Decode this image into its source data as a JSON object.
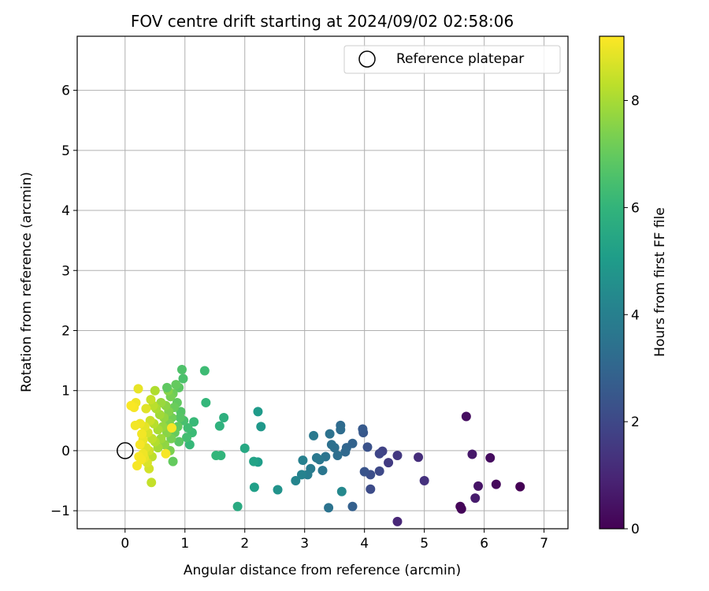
{
  "chart_data": {
    "type": "scatter",
    "title": "FOV centre drift starting at 2024/09/02 02:58:06",
    "xlabel": "Angular distance from reference (arcmin)",
    "ylabel": "Rotation from reference (arcmin)",
    "xlim": [
      -0.8,
      7.4
    ],
    "ylim": [
      -1.3,
      6.9
    ],
    "xticks": [
      0,
      1,
      2,
      3,
      4,
      5,
      6,
      7
    ],
    "yticks": [
      -1,
      0,
      1,
      2,
      3,
      4,
      5,
      6
    ],
    "xtick_labels": [
      "0",
      "1",
      "2",
      "3",
      "4",
      "5",
      "6",
      "7"
    ],
    "ytick_labels": [
      "−1",
      "0",
      "1",
      "2",
      "3",
      "4",
      "5",
      "6"
    ],
    "grid": true,
    "colormap": "viridis",
    "colorbar": {
      "label": "Hours from first FF file",
      "range": [
        0,
        9.2
      ],
      "ticks": [
        0,
        2,
        4,
        6,
        8
      ],
      "tick_labels": [
        "0",
        "2",
        "4",
        "6",
        "8"
      ]
    },
    "legend": {
      "placement": "top-right",
      "entries": [
        {
          "label": "Reference platepar",
          "marker": "open-circle",
          "color": "#000000"
        }
      ]
    },
    "reference_point": {
      "x": 0,
      "y": 0
    },
    "series": [
      {
        "points": [
          {
            "x": 6.6,
            "y": -0.6,
            "c": 0.0
          },
          {
            "x": 5.62,
            "y": -0.97,
            "c": 0.1
          },
          {
            "x": 5.6,
            "y": -0.93,
            "c": 0.15
          },
          {
            "x": 6.2,
            "y": -0.56,
            "c": 0.2
          },
          {
            "x": 6.1,
            "y": -0.12,
            "c": 0.3
          },
          {
            "x": 5.7,
            "y": 0.57,
            "c": 0.35
          },
          {
            "x": 5.9,
            "y": -0.59,
            "c": 0.5
          },
          {
            "x": 5.8,
            "y": -0.06,
            "c": 0.6
          },
          {
            "x": 5.85,
            "y": -0.79,
            "c": 0.7
          },
          {
            "x": 4.55,
            "y": -1.18,
            "c": 1.0
          },
          {
            "x": 4.9,
            "y": -0.11,
            "c": 1.2
          },
          {
            "x": 5.0,
            "y": -0.5,
            "c": 1.3
          },
          {
            "x": 4.55,
            "y": -0.08,
            "c": 1.5
          },
          {
            "x": 4.4,
            "y": -0.2,
            "c": 1.6
          },
          {
            "x": 4.3,
            "y": -0.01,
            "c": 1.8
          },
          {
            "x": 4.25,
            "y": -0.05,
            "c": 1.9
          },
          {
            "x": 4.25,
            "y": -0.34,
            "c": 2.0
          },
          {
            "x": 4.1,
            "y": -0.64,
            "c": 2.1
          },
          {
            "x": 4.1,
            "y": -0.4,
            "c": 2.2
          },
          {
            "x": 4.05,
            "y": 0.06,
            "c": 2.3
          },
          {
            "x": 4.0,
            "y": -0.35,
            "c": 2.4
          },
          {
            "x": 3.98,
            "y": 0.3,
            "c": 2.5
          },
          {
            "x": 3.97,
            "y": 0.36,
            "c": 2.6
          },
          {
            "x": 3.8,
            "y": -0.93,
            "c": 2.8
          },
          {
            "x": 3.8,
            "y": 0.12,
            "c": 2.9
          },
          {
            "x": 3.7,
            "y": 0.05,
            "c": 3.0
          },
          {
            "x": 3.68,
            "y": -0.02,
            "c": 3.1
          },
          {
            "x": 3.6,
            "y": 0.42,
            "c": 3.2
          },
          {
            "x": 3.6,
            "y": 0.35,
            "c": 3.25
          },
          {
            "x": 3.55,
            "y": -0.08,
            "c": 3.3
          },
          {
            "x": 3.5,
            "y": 0.05,
            "c": 3.35
          },
          {
            "x": 3.45,
            "y": 0.1,
            "c": 3.4
          },
          {
            "x": 3.42,
            "y": 0.28,
            "c": 3.45
          },
          {
            "x": 3.4,
            "y": -0.95,
            "c": 3.5
          },
          {
            "x": 3.35,
            "y": -0.1,
            "c": 3.55
          },
          {
            "x": 3.3,
            "y": -0.33,
            "c": 3.6
          },
          {
            "x": 3.25,
            "y": -0.15,
            "c": 3.65
          },
          {
            "x": 3.2,
            "y": -0.12,
            "c": 3.7
          },
          {
            "x": 3.15,
            "y": 0.25,
            "c": 3.75
          },
          {
            "x": 3.1,
            "y": -0.3,
            "c": 3.8
          },
          {
            "x": 3.05,
            "y": -0.4,
            "c": 3.9
          },
          {
            "x": 2.97,
            "y": -0.16,
            "c": 4.0
          },
          {
            "x": 2.95,
            "y": -0.4,
            "c": 4.1
          },
          {
            "x": 2.85,
            "y": -0.5,
            "c": 4.2
          },
          {
            "x": 3.62,
            "y": -0.68,
            "c": 4.3
          },
          {
            "x": 2.55,
            "y": -0.65,
            "c": 4.7
          },
          {
            "x": 2.27,
            "y": 0.4,
            "c": 4.9
          },
          {
            "x": 2.22,
            "y": 0.65,
            "c": 5.0
          },
          {
            "x": 2.22,
            "y": -0.19,
            "c": 5.1
          },
          {
            "x": 2.16,
            "y": -0.61,
            "c": 5.2
          },
          {
            "x": 2.15,
            "y": -0.18,
            "c": 5.3
          },
          {
            "x": 2.0,
            "y": 0.04,
            "c": 5.5
          },
          {
            "x": 1.88,
            "y": -0.93,
            "c": 5.6
          },
          {
            "x": 1.65,
            "y": 0.55,
            "c": 5.8
          },
          {
            "x": 1.58,
            "y": 0.41,
            "c": 5.9
          },
          {
            "x": 1.6,
            "y": -0.08,
            "c": 6.0
          },
          {
            "x": 1.52,
            "y": -0.08,
            "c": 6.05
          },
          {
            "x": 1.35,
            "y": 0.8,
            "c": 6.1
          },
          {
            "x": 1.33,
            "y": 1.33,
            "c": 6.3
          },
          {
            "x": 1.15,
            "y": 0.48,
            "c": 6.2
          },
          {
            "x": 1.12,
            "y": 0.3,
            "c": 6.25
          },
          {
            "x": 1.08,
            "y": 0.1,
            "c": 6.15
          },
          {
            "x": 1.05,
            "y": 0.38,
            "c": 6.35
          },
          {
            "x": 1.03,
            "y": 0.22,
            "c": 6.4
          },
          {
            "x": 0.98,
            "y": 0.5,
            "c": 6.5
          },
          {
            "x": 0.97,
            "y": 1.2,
            "c": 6.55
          },
          {
            "x": 0.95,
            "y": 1.35,
            "c": 6.6
          },
          {
            "x": 0.93,
            "y": 0.65,
            "c": 6.7
          },
          {
            "x": 0.92,
            "y": 0.55,
            "c": 6.75
          },
          {
            "x": 0.9,
            "y": 0.15,
            "c": 6.8
          },
          {
            "x": 0.9,
            "y": 1.05,
            "c": 6.85
          },
          {
            "x": 0.88,
            "y": 0.4,
            "c": 6.9
          },
          {
            "x": 0.87,
            "y": 0.8,
            "c": 6.95
          },
          {
            "x": 0.85,
            "y": 1.1,
            "c": 7.0
          },
          {
            "x": 0.83,
            "y": 0.3,
            "c": 7.05
          },
          {
            "x": 0.82,
            "y": 0.72,
            "c": 7.1
          },
          {
            "x": 0.8,
            "y": 0.95,
            "c": 7.15
          },
          {
            "x": 0.8,
            "y": -0.18,
            "c": 7.0
          },
          {
            "x": 0.78,
            "y": 0.55,
            "c": 7.2
          },
          {
            "x": 0.77,
            "y": 0.2,
            "c": 7.25
          },
          {
            "x": 0.76,
            "y": 0.9,
            "c": 7.3
          },
          {
            "x": 0.75,
            "y": 0.0,
            "c": 7.35
          },
          {
            "x": 0.74,
            "y": 0.45,
            "c": 7.4
          },
          {
            "x": 0.73,
            "y": 0.65,
            "c": 7.45
          },
          {
            "x": 0.72,
            "y": 1.0,
            "c": 7.5
          },
          {
            "x": 0.7,
            "y": 0.3,
            "c": 7.55
          },
          {
            "x": 0.7,
            "y": 1.05,
            "c": 6.9
          },
          {
            "x": 0.68,
            "y": 0.75,
            "c": 7.6
          },
          {
            "x": 0.66,
            "y": 0.1,
            "c": 7.65
          },
          {
            "x": 0.65,
            "y": 0.55,
            "c": 7.7
          },
          {
            "x": 0.63,
            "y": 0.4,
            "c": 7.75
          },
          {
            "x": 0.6,
            "y": 0.8,
            "c": 7.8
          },
          {
            "x": 0.6,
            "y": 0.2,
            "c": 7.85
          },
          {
            "x": 0.58,
            "y": 0.6,
            "c": 7.9
          },
          {
            "x": 0.55,
            "y": 0.05,
            "c": 7.95
          },
          {
            "x": 0.55,
            "y": 0.35,
            "c": 8.0
          },
          {
            "x": 0.52,
            "y": 0.7,
            "c": 8.05
          },
          {
            "x": 0.5,
            "y": 1.0,
            "c": 8.1
          },
          {
            "x": 0.5,
            "y": 0.15,
            "c": 8.15
          },
          {
            "x": 0.48,
            "y": 0.45,
            "c": 8.2
          },
          {
            "x": 0.47,
            "y": 0.75,
            "c": 8.25
          },
          {
            "x": 0.45,
            "y": -0.1,
            "c": 8.3
          },
          {
            "x": 0.45,
            "y": 0.2,
            "c": 8.35
          },
          {
            "x": 0.44,
            "y": -0.53,
            "c": 8.4
          },
          {
            "x": 0.43,
            "y": 0.85,
            "c": 8.45
          },
          {
            "x": 0.42,
            "y": 0.5,
            "c": 8.5
          },
          {
            "x": 0.4,
            "y": 0.0,
            "c": 8.55
          },
          {
            "x": 0.4,
            "y": -0.3,
            "c": 8.6
          },
          {
            "x": 0.38,
            "y": 0.3,
            "c": 8.65
          },
          {
            "x": 0.37,
            "y": -0.2,
            "c": 8.7
          },
          {
            "x": 0.35,
            "y": 0.05,
            "c": 8.75
          },
          {
            "x": 0.35,
            "y": 0.7,
            "c": 8.8
          },
          {
            "x": 0.33,
            "y": 0.4,
            "c": 8.85
          },
          {
            "x": 0.32,
            "y": -0.12,
            "c": 8.9
          },
          {
            "x": 0.3,
            "y": 0.18,
            "c": 8.95
          },
          {
            "x": 0.3,
            "y": -0.05,
            "c": 9.0
          },
          {
            "x": 0.28,
            "y": 0.28,
            "c": 9.05
          },
          {
            "x": 0.27,
            "y": -0.15,
            "c": 9.1
          },
          {
            "x": 0.25,
            "y": 0.1,
            "c": 9.1
          },
          {
            "x": 0.25,
            "y": 0.45,
            "c": 9.0
          },
          {
            "x": 0.23,
            "y": -0.1,
            "c": 9.1
          },
          {
            "x": 0.22,
            "y": 1.03,
            "c": 8.9
          },
          {
            "x": 0.2,
            "y": -0.25,
            "c": 9.1
          },
          {
            "x": 0.18,
            "y": 0.8,
            "c": 9.0
          },
          {
            "x": 0.17,
            "y": 0.42,
            "c": 9.05
          },
          {
            "x": 0.15,
            "y": 0.72,
            "c": 9.1
          },
          {
            "x": 0.1,
            "y": 0.75,
            "c": 9.15
          },
          {
            "x": 0.78,
            "y": 0.38,
            "c": 9.1
          },
          {
            "x": 0.68,
            "y": -0.05,
            "c": 9.1
          }
        ]
      }
    ]
  }
}
